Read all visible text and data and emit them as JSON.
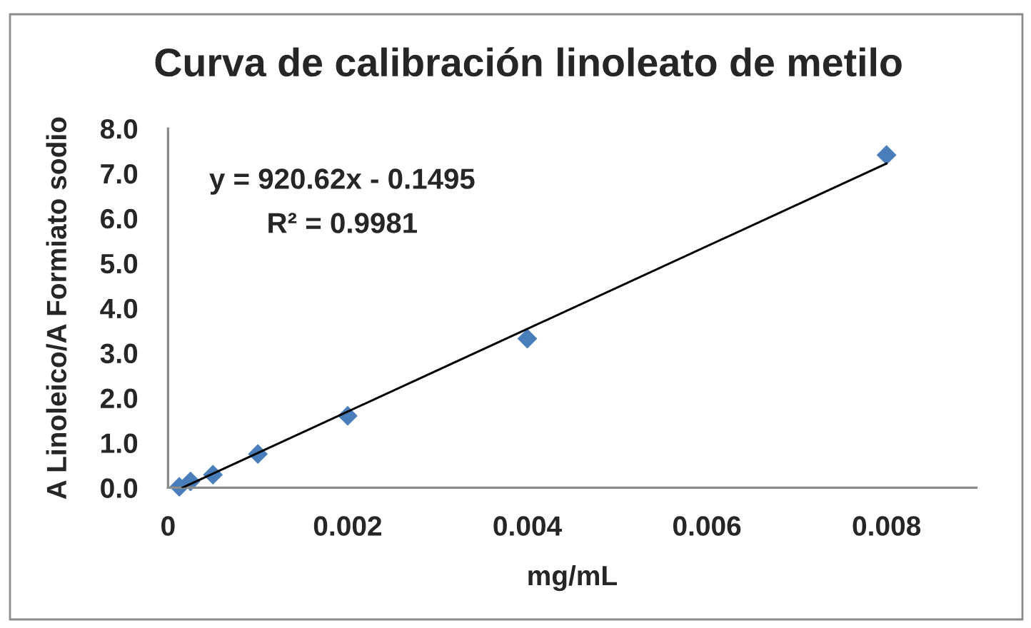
{
  "chart_data": {
    "type": "scatter",
    "title": "Curva de calibración linoleato de metilo",
    "xlabel": "mg/mL",
    "ylabel": "A Linoleico/A Formiato sodio",
    "x": [
      0.000125,
      0.00025,
      0.0005,
      0.001,
      0.002,
      0.004,
      0.008
    ],
    "series": [
      {
        "color": "#4a7ebb",
        "marker": "diamond",
        "values": [
          0.02,
          0.14,
          0.29,
          0.75,
          1.6,
          3.32,
          7.41
        ]
      },
      {
        "type": "line",
        "color": "#000000",
        "x": [
          0.00016,
          0.008
        ],
        "values": [
          0,
          7.22
        ]
      }
    ],
    "xlim": [
      0,
      0.009
    ],
    "xticks": [
      0,
      0.002,
      0.004,
      0.006,
      0.008
    ],
    "ylim": [
      0,
      8
    ],
    "yticks": [
      {
        "value": 0,
        "label": "0.0"
      },
      {
        "value": 1,
        "label": "1.0"
      },
      {
        "value": 2,
        "label": "2.0"
      },
      {
        "value": 3,
        "label": "3.0"
      },
      {
        "value": 4,
        "label": "4.0"
      },
      {
        "value": 5,
        "label": "5.0"
      },
      {
        "value": 6,
        "label": "6.0"
      },
      {
        "value": 7,
        "label": "7.0"
      },
      {
        "value": 8,
        "label": "8.0"
      }
    ],
    "annotations": [
      "y = 920.62x - 0.1495",
      "R² = 0.9981"
    ]
  }
}
